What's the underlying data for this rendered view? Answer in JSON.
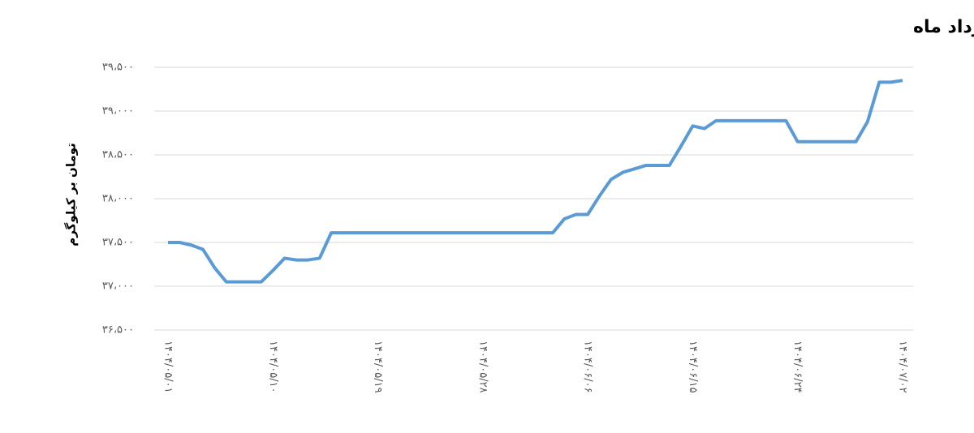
{
  "chart_data": {
    "type": "line",
    "title": "شاخص قیمت میلگرد ساده شاخه از ابتدای مرداد ماه",
    "y_label": "تومان بر کیلوگرم",
    "categories": [
      "۱۴۰۴/۰۵/۰۱",
      null,
      null,
      null,
      null,
      null,
      null,
      null,
      null,
      "۱۴۰۴/۰۵/۱۰",
      null,
      null,
      null,
      null,
      null,
      null,
      null,
      null,
      "۱۴۰۴/۰۵/۱۹",
      null,
      null,
      null,
      null,
      null,
      null,
      null,
      null,
      "۱۴۰۴/۰۵/۲۸",
      null,
      null,
      null,
      null,
      null,
      null,
      null,
      null,
      "۱۴۰۴/۰۶/۰۶",
      null,
      null,
      null,
      null,
      null,
      null,
      null,
      null,
      "۱۴۰۴/۰۶/۱۵",
      null,
      null,
      null,
      null,
      null,
      null,
      null,
      null,
      "۱۴۰۴/۰۶/۲۴",
      null,
      null,
      null,
      null,
      null,
      null,
      null,
      null,
      "۱۴۰۴/۰۷/۰۲"
    ],
    "series": [
      {
        "color": "#5b9bd5",
        "values": [
          37500,
          37500,
          37470,
          37420,
          37210,
          37050,
          37050,
          37050,
          37050,
          37180,
          37320,
          37300,
          37300,
          37320,
          37610,
          37610,
          37610,
          37610,
          37610,
          37610,
          37610,
          37610,
          37610,
          37610,
          37610,
          37610,
          37610,
          37610,
          37610,
          37610,
          37610,
          37610,
          37610,
          37610,
          37770,
          37820,
          37820,
          38030,
          38220,
          38300,
          38340,
          38380,
          38380,
          38380,
          38600,
          38830,
          38800,
          38890,
          38890,
          38890,
          38890,
          38890,
          38890,
          38890,
          38650,
          38650,
          38650,
          38650,
          38650,
          38650,
          38880,
          39330,
          39330,
          39350
        ]
      }
    ],
    "ylim": [
      36500,
      39500
    ],
    "yticks": [
      {
        "value": 36500,
        "label": "۳۶،۵۰۰"
      },
      {
        "value": 37000,
        "label": "۳۷،۰۰۰"
      },
      {
        "value": 37500,
        "label": "۳۷،۵۰۰"
      },
      {
        "value": 38000,
        "label": "۳۸،۰۰۰"
      },
      {
        "value": 38500,
        "label": "۳۸،۵۰۰"
      },
      {
        "value": 39000,
        "label": "۳۹،۰۰۰"
      },
      {
        "value": 39500,
        "label": "۳۹،۵۰۰"
      }
    ],
    "grid": true
  }
}
